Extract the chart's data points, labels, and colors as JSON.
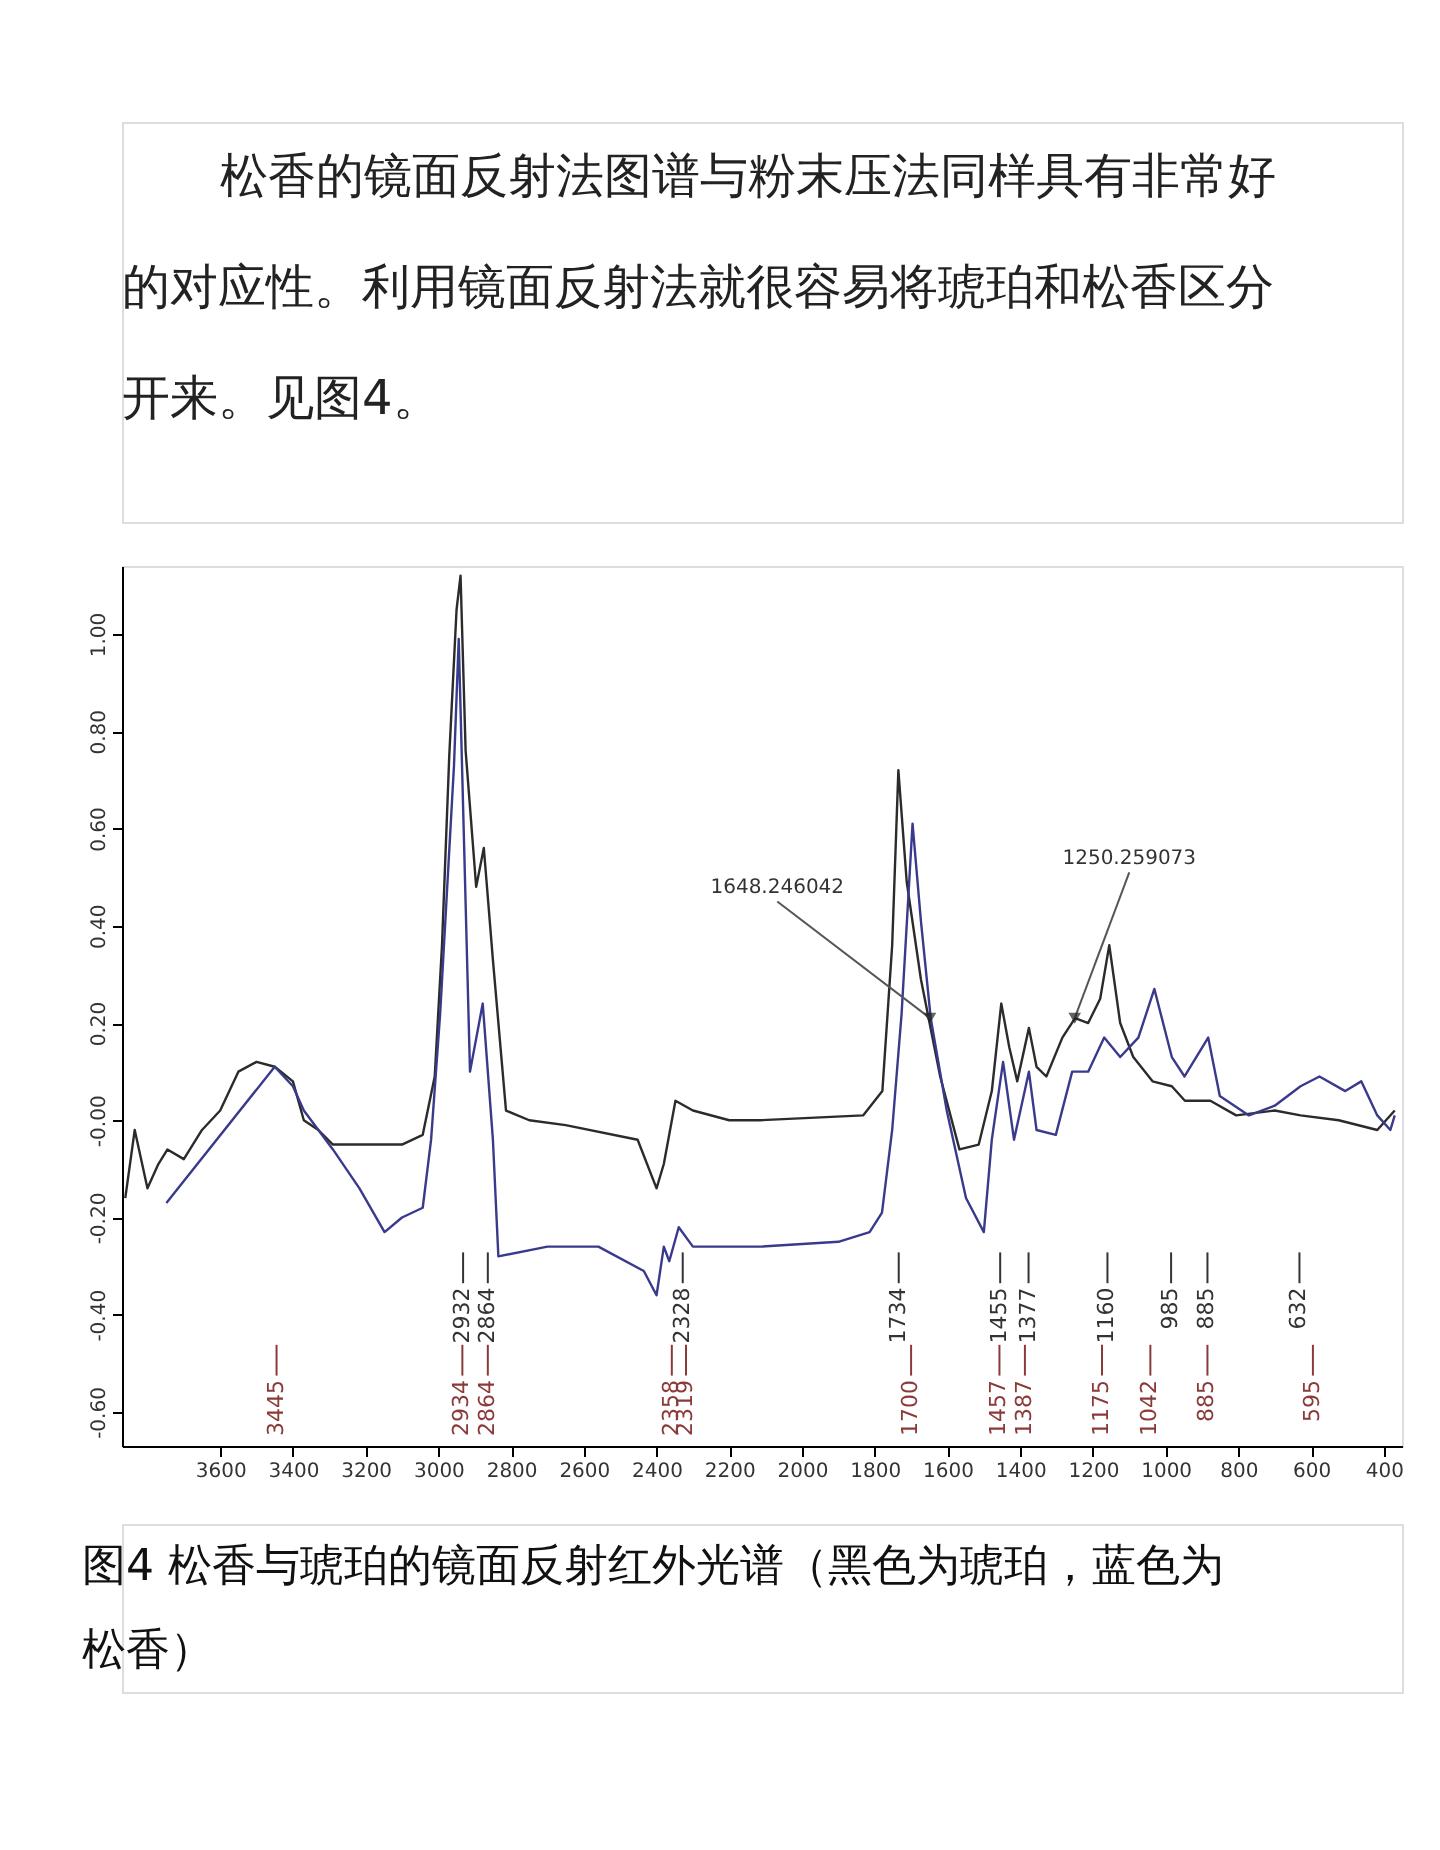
{
  "chart_data": {
    "type": "line",
    "title": "图4 松香与琥珀的镜面反射红外光谱（黑色为琥珀，蓝色为松香）",
    "xlim": [
      3870,
      350
    ],
    "xticks": [
      3600,
      3400,
      3200,
      3000,
      2800,
      2600,
      2400,
      2200,
      2000,
      1800,
      1600,
      1400,
      1200,
      1000,
      800,
      600,
      400
    ],
    "ylim": [
      -0.67,
      1.14
    ],
    "yticks": [
      {
        "value": -0.6,
        "label": "-0.60"
      },
      {
        "value": -0.4,
        "label": "-0.40"
      },
      {
        "value": -0.2,
        "label": "-0.20"
      },
      {
        "value": 0,
        "label": "-0.00"
      },
      {
        "value": 0.2,
        "label": "0.20"
      },
      {
        "value": 0.4,
        "label": "0.40"
      },
      {
        "value": 0.6,
        "label": "0.60"
      },
      {
        "value": 0.8,
        "label": "0.80"
      },
      {
        "value": 1.0,
        "label": "1.00"
      }
    ],
    "grid": false,
    "series": [
      {
        "color": "#2b2b2b",
        "x": [
          3861,
          3835,
          3800,
          3770,
          3745,
          3700,
          3650,
          3600,
          3550,
          3500,
          3450,
          3400,
          3370,
          3330,
          3290,
          3200,
          3100,
          3043,
          3010,
          2990,
          2970,
          2950,
          2939,
          2925,
          2896,
          2875,
          2850,
          2814,
          2750,
          2650,
          2452,
          2400,
          2380,
          2348,
          2300,
          2200,
          2115,
          1832,
          1779,
          1752,
          1735,
          1712,
          1673,
          1620,
          1567,
          1514,
          1478,
          1452,
          1430,
          1408,
          1376,
          1355,
          1328,
          1284,
          1249,
          1213,
          1180,
          1155,
          1125,
          1089,
          1036,
          983,
          947,
          877,
          806,
          700,
          629,
          524,
          418,
          370
        ],
        "values": [
          -0.16,
          -0.02,
          -0.14,
          -0.09,
          -0.06,
          -0.08,
          -0.02,
          0.02,
          0.1,
          0.12,
          0.11,
          0.08,
          0.0,
          -0.02,
          -0.05,
          -0.05,
          -0.05,
          -0.03,
          0.09,
          0.36,
          0.75,
          1.05,
          1.12,
          0.76,
          0.48,
          0.56,
          0.33,
          0.02,
          0.0,
          -0.01,
          -0.04,
          -0.14,
          -0.09,
          0.04,
          0.02,
          0.0,
          0.0,
          0.01,
          0.06,
          0.36,
          0.72,
          0.49,
          0.29,
          0.09,
          -0.06,
          -0.05,
          0.06,
          0.24,
          0.15,
          0.08,
          0.19,
          0.11,
          0.09,
          0.17,
          0.21,
          0.2,
          0.25,
          0.36,
          0.2,
          0.13,
          0.08,
          0.07,
          0.04,
          0.04,
          0.01,
          0.02,
          0.01,
          0.0,
          -0.02,
          0.02
        ]
      },
      {
        "color": "#3a3a8c",
        "x": [
          3748,
          3450,
          3400,
          3370,
          3330,
          3290,
          3217,
          3148,
          3100,
          3043,
          3020,
          2995,
          2957,
          2944,
          2913,
          2878,
          2850,
          2835,
          2700,
          2560,
          2435,
          2400,
          2380,
          2365,
          2339,
          2300,
          2200,
          2115,
          1900,
          1814,
          1780,
          1752,
          1726,
          1696,
          1673,
          1646,
          1602,
          1549,
          1500,
          1478,
          1447,
          1417,
          1376,
          1355,
          1302,
          1257,
          1213,
          1169,
          1125,
          1075,
          1031,
          983,
          948,
          883,
          851,
          771,
          700,
          629,
          577,
          506,
          462,
          418,
          382,
          370
        ],
        "values": [
          -0.17,
          0.11,
          0.07,
          0.02,
          -0.02,
          -0.06,
          -0.14,
          -0.23,
          -0.2,
          -0.18,
          -0.04,
          0.22,
          0.73,
          0.99,
          0.1,
          0.24,
          -0.04,
          -0.28,
          -0.26,
          -0.26,
          -0.31,
          -0.36,
          -0.26,
          -0.29,
          -0.22,
          -0.26,
          -0.26,
          -0.26,
          -0.25,
          -0.23,
          -0.19,
          -0.02,
          0.22,
          0.61,
          0.41,
          0.21,
          0.02,
          -0.16,
          -0.23,
          -0.04,
          0.12,
          -0.04,
          0.1,
          -0.02,
          -0.03,
          0.1,
          0.1,
          0.17,
          0.13,
          0.17,
          0.27,
          0.13,
          0.09,
          0.17,
          0.05,
          0.01,
          0.03,
          0.07,
          0.09,
          0.06,
          0.08,
          0.01,
          -0.02,
          0.01
        ]
      }
    ],
    "annotations": [
      "松香的镜面反射法图谱与粉末压法同样具有非常好的对应性。利用镜面反射法就很容易将琥珀和松香区分开来。见图4。",
      {
        "text": "1250.259073",
        "x": 1250,
        "y": 0.21
      },
      {
        "text": "1648.246042",
        "x": 1648,
        "y": 0.21
      }
    ],
    "ref_lines": [
      {
        "axis": "x",
        "value": 2932,
        "label": "2932",
        "color": "#333333"
      },
      {
        "axis": "x",
        "value": 2864,
        "label": "2864",
        "color": "#333333"
      },
      {
        "axis": "x",
        "value": 2328,
        "label": "2328",
        "color": "#333333"
      },
      {
        "axis": "x",
        "value": 1734,
        "label": "1734",
        "color": "#333333"
      },
      {
        "axis": "x",
        "value": 1455,
        "label": "1455",
        "color": "#333333"
      },
      {
        "axis": "x",
        "value": 1377,
        "label": "1377",
        "color": "#333333"
      },
      {
        "axis": "x",
        "value": 1160,
        "label": "1160",
        "color": "#333333"
      },
      {
        "axis": "x",
        "value": 985,
        "label": "985",
        "color": "#333333"
      },
      {
        "axis": "x",
        "value": 885,
        "label": "885",
        "color": "#333333"
      },
      {
        "axis": "x",
        "value": 632,
        "label": "632",
        "color": "#333333"
      },
      {
        "axis": "x",
        "value": 3445,
        "label": "3445",
        "color": "#8b3a3a"
      },
      {
        "axis": "x",
        "value": 2934,
        "label": "2934",
        "color": "#8b3a3a"
      },
      {
        "axis": "x",
        "value": 2864,
        "label": "2864",
        "color": "#8b3a3a"
      },
      {
        "axis": "x",
        "value": 2358,
        "label": "2358",
        "color": "#8b3a3a"
      },
      {
        "axis": "x",
        "value": 2319,
        "label": "2319",
        "color": "#8b3a3a"
      },
      {
        "axis": "x",
        "value": 1700,
        "label": "1700",
        "color": "#8b3a3a"
      },
      {
        "axis": "x",
        "value": 1457,
        "label": "1457",
        "color": "#8b3a3a"
      },
      {
        "axis": "x",
        "value": 1387,
        "label": "1387",
        "color": "#8b3a3a"
      },
      {
        "axis": "x",
        "value": 1175,
        "label": "1175",
        "color": "#8b3a3a"
      },
      {
        "axis": "x",
        "value": 1042,
        "label": "1042",
        "color": "#8b3a3a"
      },
      {
        "axis": "x",
        "value": 885,
        "label": "885",
        "color": "#8b3a3a"
      },
      {
        "axis": "x",
        "value": 595,
        "label": "595",
        "color": "#8b3a3a"
      }
    ]
  }
}
